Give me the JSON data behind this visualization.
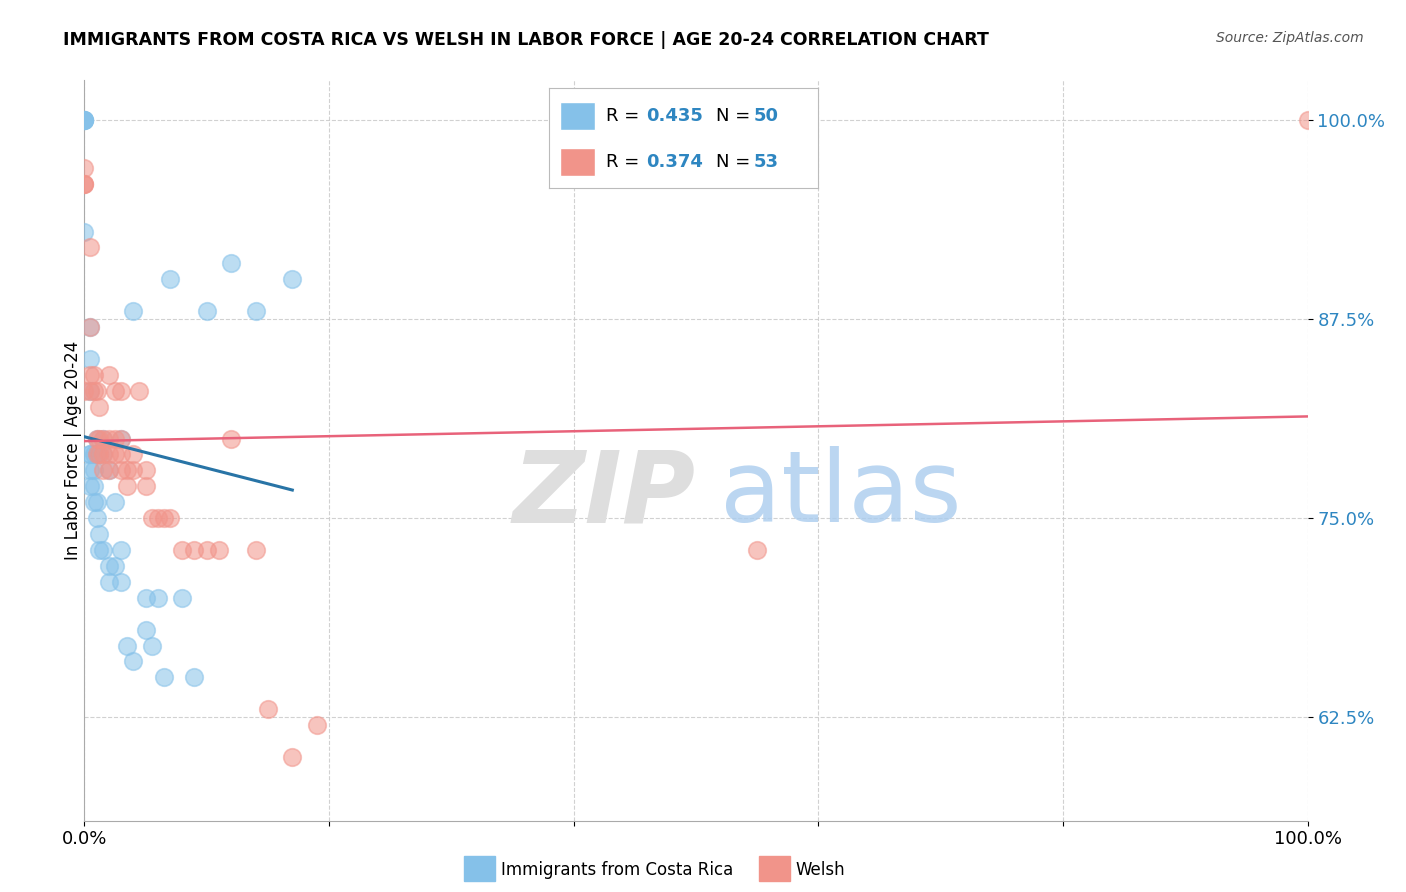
{
  "title": "IMMIGRANTS FROM COSTA RICA VS WELSH IN LABOR FORCE | AGE 20-24 CORRELATION CHART",
  "source": "Source: ZipAtlas.com",
  "ylabel": "In Labor Force | Age 20-24",
  "xlim": [
    0.0,
    1.0
  ],
  "ylim": [
    0.56,
    1.025
  ],
  "yticks": [
    0.625,
    0.75,
    0.875,
    1.0
  ],
  "ytick_labels": [
    "62.5%",
    "75.0%",
    "87.5%",
    "100.0%"
  ],
  "xticks": [
    0.0,
    0.2,
    0.4,
    0.6,
    0.8,
    1.0
  ],
  "xtick_labels": [
    "0.0%",
    "",
    "",
    "",
    "",
    "100.0%"
  ],
  "blue_color": "#85C1E9",
  "pink_color": "#F1948A",
  "blue_line_color": "#2874A6",
  "pink_line_color": "#E8627A",
  "blue_scatter_x": [
    0.0,
    0.0,
    0.0,
    0.0,
    0.0,
    0.0,
    0.005,
    0.005,
    0.005,
    0.005,
    0.005,
    0.005,
    0.005,
    0.008,
    0.008,
    0.008,
    0.008,
    0.01,
    0.01,
    0.01,
    0.01,
    0.012,
    0.012,
    0.012,
    0.015,
    0.015,
    0.015,
    0.02,
    0.02,
    0.02,
    0.025,
    0.025,
    0.03,
    0.03,
    0.03,
    0.035,
    0.04,
    0.04,
    0.05,
    0.05,
    0.055,
    0.06,
    0.065,
    0.07,
    0.08,
    0.09,
    0.1,
    0.12,
    0.14,
    0.17
  ],
  "blue_scatter_y": [
    1.0,
    1.0,
    1.0,
    1.0,
    1.0,
    0.93,
    0.87,
    0.85,
    0.83,
    0.79,
    0.79,
    0.78,
    0.77,
    0.79,
    0.78,
    0.77,
    0.76,
    0.8,
    0.79,
    0.76,
    0.75,
    0.79,
    0.74,
    0.73,
    0.8,
    0.79,
    0.73,
    0.78,
    0.72,
    0.71,
    0.76,
    0.72,
    0.8,
    0.73,
    0.71,
    0.67,
    0.88,
    0.66,
    0.7,
    0.68,
    0.67,
    0.7,
    0.65,
    0.9,
    0.7,
    0.65,
    0.88,
    0.91,
    0.88,
    0.9
  ],
  "pink_scatter_x": [
    0.0,
    0.0,
    0.0,
    0.0,
    0.0,
    0.005,
    0.005,
    0.005,
    0.005,
    0.008,
    0.008,
    0.01,
    0.01,
    0.01,
    0.012,
    0.012,
    0.012,
    0.015,
    0.015,
    0.015,
    0.02,
    0.02,
    0.02,
    0.02,
    0.025,
    0.025,
    0.025,
    0.03,
    0.03,
    0.03,
    0.03,
    0.035,
    0.035,
    0.04,
    0.04,
    0.045,
    0.05,
    0.05,
    0.055,
    0.06,
    0.065,
    0.07,
    0.08,
    0.09,
    0.1,
    0.11,
    0.12,
    0.14,
    0.15,
    0.17,
    0.19,
    0.55,
    1.0
  ],
  "pink_scatter_y": [
    0.97,
    0.96,
    0.96,
    0.96,
    0.83,
    0.92,
    0.87,
    0.84,
    0.83,
    0.84,
    0.83,
    0.83,
    0.8,
    0.79,
    0.82,
    0.8,
    0.79,
    0.8,
    0.79,
    0.78,
    0.84,
    0.8,
    0.79,
    0.78,
    0.83,
    0.8,
    0.79,
    0.83,
    0.8,
    0.79,
    0.78,
    0.78,
    0.77,
    0.79,
    0.78,
    0.83,
    0.78,
    0.77,
    0.75,
    0.75,
    0.75,
    0.75,
    0.73,
    0.73,
    0.73,
    0.73,
    0.8,
    0.73,
    0.63,
    0.6,
    0.62,
    0.73,
    1.0
  ],
  "background_color": "#FFFFFF",
  "grid_color": "#CCCCCC",
  "blue_R": "0.435",
  "blue_N": "50",
  "pink_R": "0.374",
  "pink_N": "53"
}
